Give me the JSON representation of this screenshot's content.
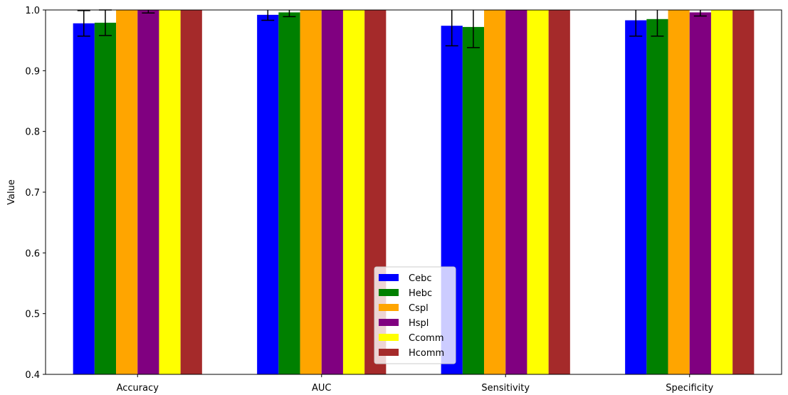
{
  "chart_data": {
    "type": "bar",
    "categories": [
      "Accuracy",
      "AUC",
      "Sensitivity",
      "Specificity"
    ],
    "series": [
      {
        "name": "Cebc",
        "color": "#0000ff",
        "values": [
          0.978,
          0.992,
          0.974,
          0.983
        ],
        "errors": [
          0.021,
          0.009,
          0.033,
          0.026
        ]
      },
      {
        "name": "Hebc",
        "color": "#008000",
        "values": [
          0.979,
          0.996,
          0.972,
          0.985
        ],
        "errors": [
          0.021,
          0.007,
          0.034,
          0.028
        ]
      },
      {
        "name": "Cspl",
        "color": "#ffa500",
        "values": [
          1.0,
          1.0,
          1.0,
          1.0
        ],
        "errors": [
          0,
          0,
          0,
          0
        ]
      },
      {
        "name": "Hspl",
        "color": "#800080",
        "values": [
          1.0,
          1.0,
          1.0,
          0.996
        ],
        "errors": [
          0.005,
          0.0,
          0.0,
          0.006
        ]
      },
      {
        "name": "Ccomm",
        "color": "#ffff00",
        "values": [
          1.0,
          1.0,
          1.0,
          1.0
        ],
        "errors": [
          0,
          0,
          0,
          0
        ]
      },
      {
        "name": "Hcomm",
        "color": "#a52a2a",
        "values": [
          1.0,
          1.0,
          1.0,
          1.0
        ],
        "errors": [
          0,
          0,
          0,
          0
        ]
      }
    ],
    "ylabel": "Value",
    "ylim": [
      0.4,
      1.0
    ],
    "yticks": [
      "0.4",
      "0.5",
      "0.6",
      "0.7",
      "0.8",
      "0.9",
      "1.0"
    ],
    "legend_position": "bottom-center",
    "grid": false
  }
}
